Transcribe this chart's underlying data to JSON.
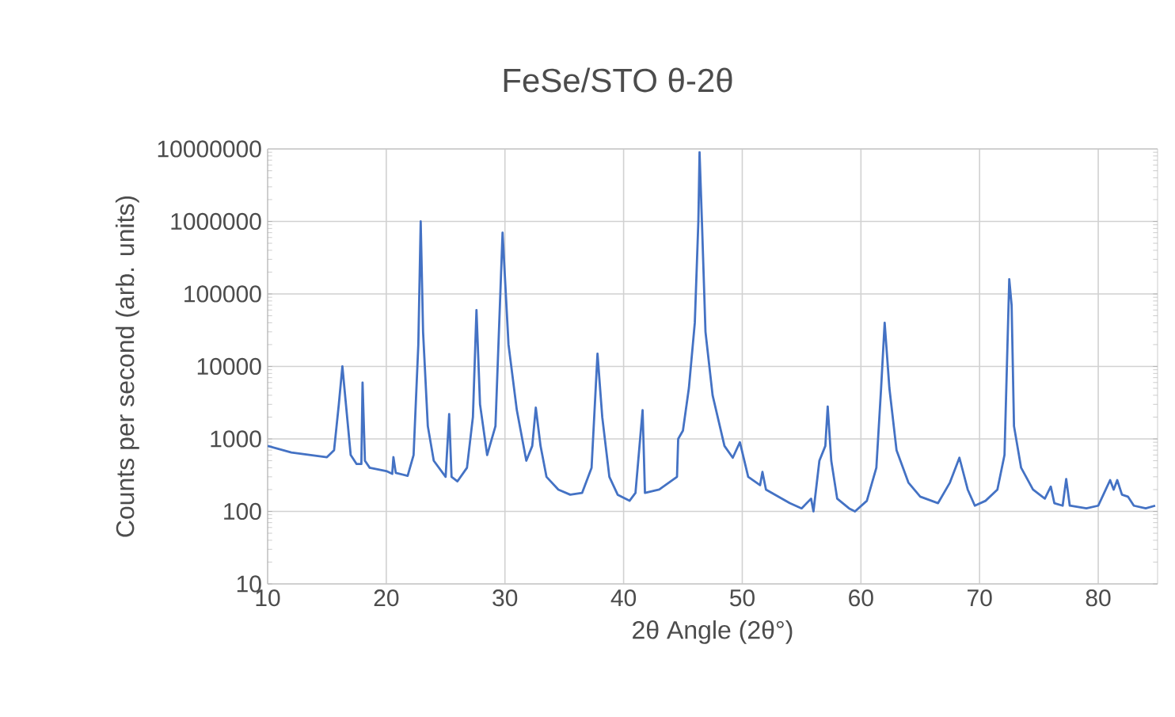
{
  "chart_data": {
    "type": "line",
    "title": "FeSe/STO θ-2θ",
    "xlabel": "2θ Angle (2θ°)",
    "ylabel": "Counts per second (arb. units)",
    "log": "y",
    "grid": true,
    "xlim": [
      10,
      85
    ],
    "ylim": [
      10,
      10000000
    ],
    "xticks": [
      10,
      20,
      30,
      40,
      50,
      60,
      70,
      80
    ],
    "yticks": [
      10,
      100,
      1000,
      10000,
      100000,
      1000000,
      10000000
    ],
    "series": [
      {
        "color": "#4472c4",
        "x": [
          10,
          12,
          15,
          15.6,
          16.0,
          16.3,
          16.6,
          17,
          17.5,
          17.9,
          18.0,
          18.2,
          18.6,
          20,
          20.5,
          20.6,
          20.8,
          21.8,
          22.3,
          22.7,
          22.9,
          23.1,
          23.5,
          24,
          25,
          25.3,
          25.5,
          26,
          26.8,
          27.3,
          27.6,
          27.9,
          28.5,
          29.2,
          29.8,
          30.3,
          31,
          31.8,
          32.3,
          32.6,
          33,
          33.5,
          34.5,
          35.5,
          36.5,
          37.3,
          37.8,
          38.2,
          38.8,
          39.5,
          40.5,
          41,
          41.6,
          41.8,
          43,
          44.5,
          44.6,
          45,
          45.5,
          46.0,
          46.3,
          46.4,
          46.6,
          46.9,
          47.5,
          48.5,
          49.2,
          49.8,
          50.5,
          51.5,
          51.7,
          52,
          54,
          55,
          55.8,
          56,
          56.5,
          57,
          57.2,
          57.5,
          58,
          59,
          59.5,
          60.5,
          61.3,
          61.7,
          62.0,
          62.4,
          63,
          64,
          65,
          66.5,
          67.5,
          68.3,
          69,
          69.6,
          70.5,
          71.5,
          72.1,
          72.5,
          72.7,
          72.9,
          73.5,
          74.5,
          75.5,
          76,
          76.3,
          77,
          77.3,
          77.6,
          79,
          80,
          80.5,
          81,
          81.3,
          81.6,
          82,
          82.5,
          83,
          84,
          84.8
        ],
        "values": [
          800,
          650,
          560,
          700,
          3000,
          10000,
          3000,
          600,
          450,
          450,
          6000,
          500,
          400,
          360,
          330,
          560,
          340,
          310,
          600,
          20000,
          1000000,
          30000,
          1500,
          500,
          300,
          2200,
          300,
          260,
          400,
          2000,
          60000,
          3000,
          600,
          1500,
          700000,
          20000,
          2500,
          500,
          800,
          2700,
          800,
          300,
          200,
          170,
          180,
          400,
          15000,
          2000,
          300,
          170,
          140,
          180,
          2500,
          180,
          200,
          300,
          1000,
          1300,
          5000,
          40000,
          1000000,
          9000000,
          1000000,
          30000,
          4000,
          800,
          550,
          900,
          300,
          230,
          350,
          200,
          130,
          110,
          150,
          100,
          500,
          800,
          2800,
          500,
          150,
          110,
          100,
          140,
          400,
          5000,
          40000,
          5000,
          700,
          250,
          160,
          130,
          250,
          550,
          200,
          120,
          140,
          200,
          600,
          160000,
          70000,
          1500,
          400,
          200,
          150,
          220,
          130,
          120,
          280,
          120,
          110,
          120,
          180,
          270,
          200,
          270,
          170,
          160,
          120,
          110,
          120
        ]
      }
    ]
  }
}
